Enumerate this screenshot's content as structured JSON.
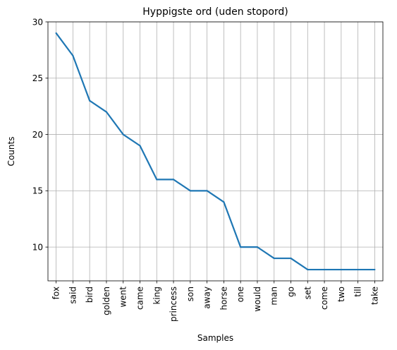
{
  "chart_data": {
    "type": "line",
    "title": "Hyppigste ord (uden stopord)",
    "xlabel": "Samples",
    "ylabel": "Counts",
    "categories": [
      "fox",
      "said",
      "bird",
      "golden",
      "went",
      "came",
      "king",
      "princess",
      "son",
      "away",
      "horse",
      "one",
      "would",
      "man",
      "go",
      "set",
      "come",
      "two",
      "till",
      "take"
    ],
    "series": [
      {
        "values": [
          29,
          27,
          23,
          22,
          20,
          19,
          16,
          16,
          15,
          15,
          14,
          10,
          10,
          9,
          9,
          8,
          8,
          8,
          8,
          8
        ]
      }
    ],
    "yticks": [
      10,
      15,
      20,
      25,
      30
    ],
    "ylim": [
      7,
      30
    ],
    "grid": true,
    "line_color": "#1f77b4",
    "grid_color": "#b0b0b0"
  }
}
